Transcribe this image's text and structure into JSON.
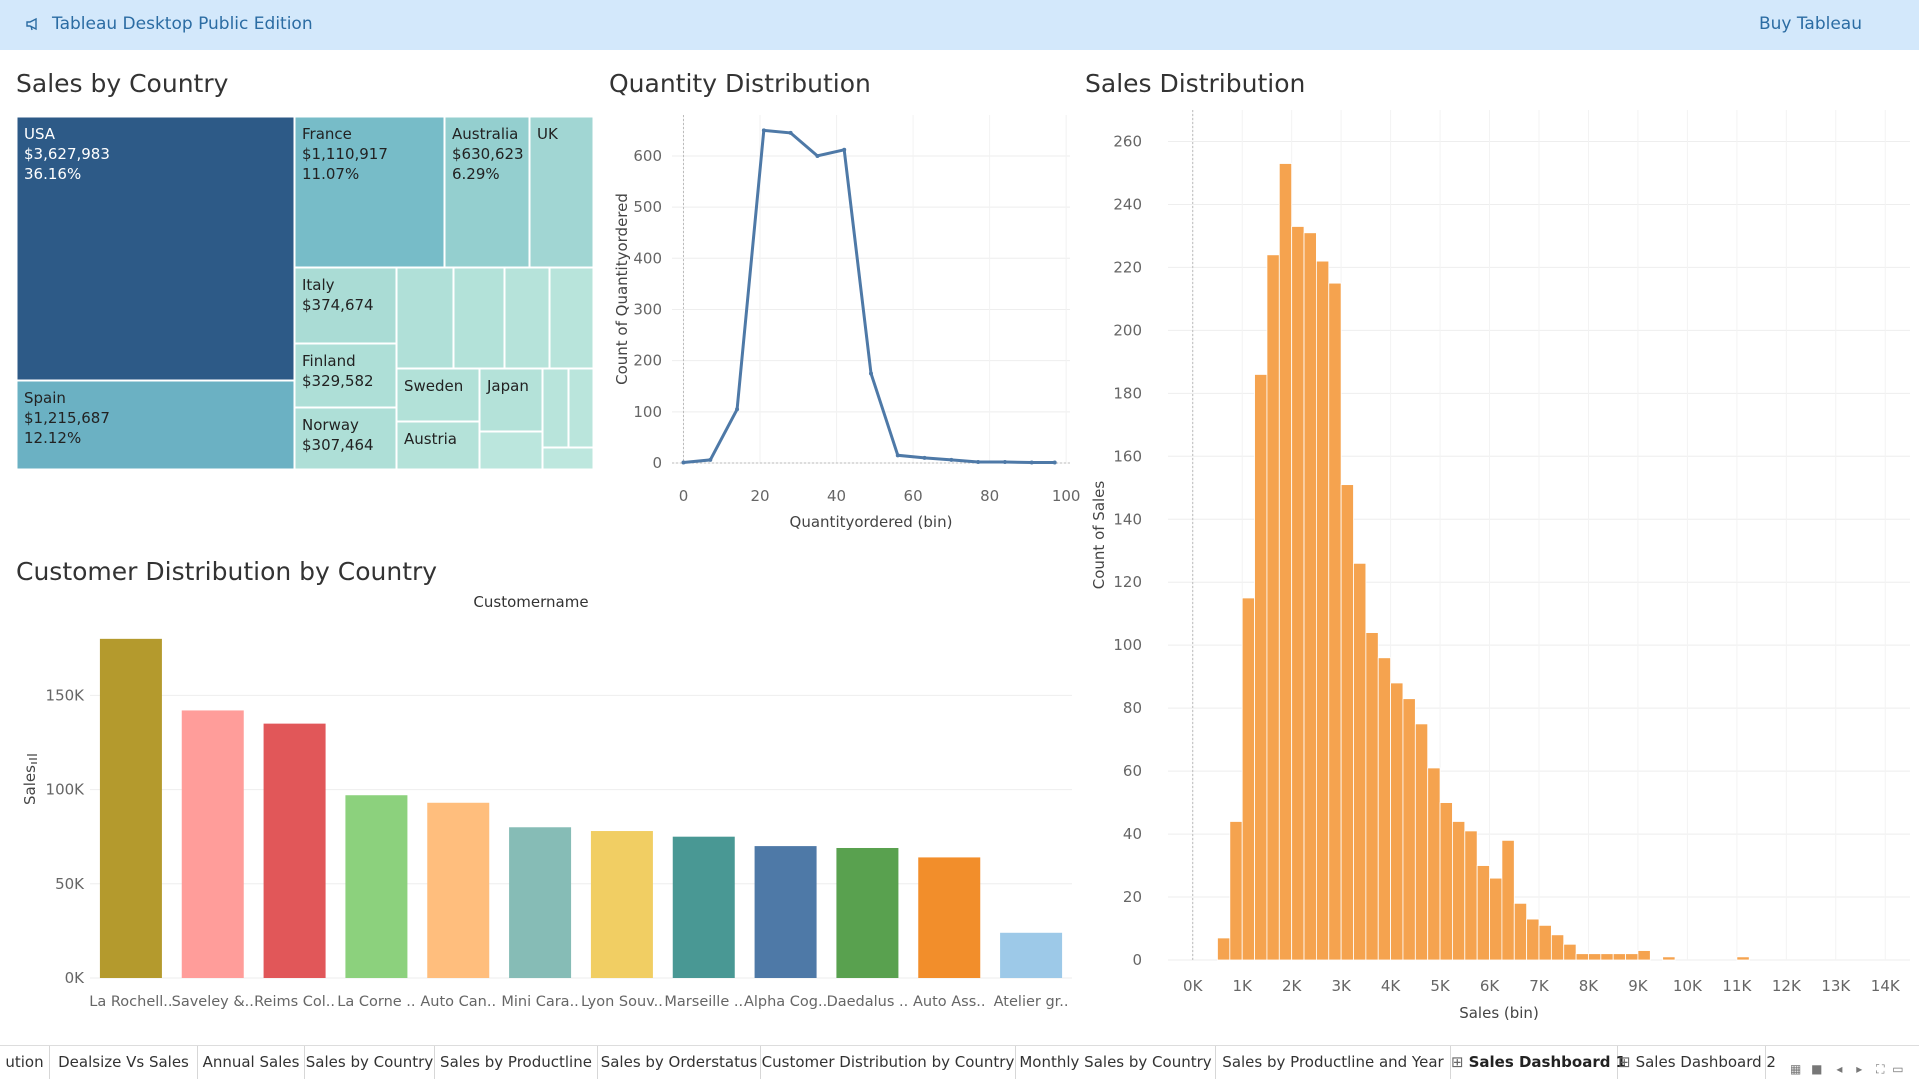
{
  "app": {
    "title": "Tableau Desktop Public Edition",
    "buy_label": "Buy Tableau"
  },
  "sections": {
    "treemap_title": "Sales by Country",
    "qty_title": "Quantity Distribution",
    "sales_dist_title": "Sales Distribution",
    "customer_title": "Customer Distribution by Country"
  },
  "treemap": {
    "cells": [
      {
        "country": "USA",
        "sales": "$3,627,983",
        "pct": "36.16%",
        "color": "#2d5a87"
      },
      {
        "country": "Spain",
        "sales": "$1,215,687",
        "pct": "12.12%",
        "color": "#6bb1c3"
      },
      {
        "country": "France",
        "sales": "$1,110,917",
        "pct": "11.07%",
        "color": "#77bcc8"
      },
      {
        "country": "Australia",
        "sales": "$630,623",
        "pct": "6.29%",
        "color": "#94cfcf"
      },
      {
        "country": "UK",
        "sales": "",
        "pct": "",
        "color": "#a1d6d3"
      },
      {
        "country": "Italy",
        "sales": "$374,674",
        "pct": "",
        "color": "#aadcd5"
      },
      {
        "country": "Finland",
        "sales": "$329,582",
        "pct": "",
        "color": "#aedfd7"
      },
      {
        "country": "Norway",
        "sales": "$307,464",
        "pct": "",
        "color": "#aedfd7"
      },
      {
        "country": "Sweden",
        "sales": "",
        "pct": "",
        "color": "#b2e1d8"
      },
      {
        "country": "Japan",
        "sales": "",
        "pct": "",
        "color": "#b4e2d9"
      },
      {
        "country": "Austria",
        "sales": "",
        "pct": "",
        "color": "#b4e2d9"
      }
    ]
  },
  "chart_data": [
    {
      "type": "line",
      "title": "Quantity Distribution",
      "xlabel": "Quantityordered (bin)",
      "ylabel": "Count of Quantityordered",
      "x": [
        0,
        7,
        14,
        21,
        28,
        35,
        42,
        49,
        56,
        63,
        70,
        77,
        84,
        91,
        97
      ],
      "y": [
        1,
        6,
        105,
        650,
        645,
        600,
        612,
        175,
        15,
        10,
        6,
        2,
        2,
        1,
        1
      ],
      "xticks": [
        "0",
        "20",
        "40",
        "60",
        "80",
        "100"
      ],
      "yticks": [
        "0",
        "100",
        "200",
        "300",
        "400",
        "500",
        "600"
      ],
      "xlim": [
        -3,
        101
      ],
      "ylim": [
        0,
        680
      ],
      "color": "#4e79a7"
    },
    {
      "type": "bar",
      "title": "Sales Distribution",
      "xlabel": "Sales (bin)",
      "ylabel": "Count of Sales",
      "x": [
        500,
        750,
        1000,
        1250,
        1500,
        1750,
        2000,
        2250,
        2500,
        2750,
        3000,
        3250,
        3500,
        3750,
        4000,
        4250,
        4500,
        4750,
        5000,
        5250,
        5500,
        5750,
        6000,
        6250,
        6500,
        6750,
        7000,
        7250,
        7500,
        7750,
        8000,
        8250,
        8500,
        8750,
        9000,
        9250,
        9500,
        9750,
        10000,
        10250,
        10500,
        10750,
        11000,
        11250,
        11500,
        11750,
        12000,
        12250,
        12500,
        12750,
        13000,
        13250,
        13500,
        13750,
        14000
      ],
      "values": [
        7,
        44,
        115,
        186,
        224,
        253,
        233,
        231,
        222,
        215,
        151,
        126,
        104,
        96,
        88,
        83,
        75,
        61,
        50,
        44,
        41,
        30,
        26,
        38,
        18,
        13,
        11,
        8,
        5,
        2,
        2,
        2,
        2,
        2,
        3,
        0,
        1,
        0,
        0,
        0,
        0,
        0,
        1,
        0,
        0,
        0,
        0,
        0,
        0,
        0,
        0,
        0,
        0,
        0,
        0
      ],
      "xticks": [
        "0K",
        "1K",
        "2K",
        "3K",
        "4K",
        "5K",
        "6K",
        "7K",
        "8K",
        "9K",
        "10K",
        "11K",
        "12K",
        "13K",
        "14K"
      ],
      "yticks": [
        "0",
        "20",
        "40",
        "60",
        "80",
        "100",
        "120",
        "140",
        "160",
        "180",
        "200",
        "220",
        "240",
        "260"
      ],
      "ylim": [
        0,
        270
      ],
      "color": "#f5a34f"
    },
    {
      "type": "bar",
      "title": "Customer Distribution by Country",
      "header": "Customername",
      "ylabel": "Sales",
      "categories": [
        "La Rochell..",
        "Saveley &..",
        "Reims Col..",
        "La Corne ..",
        "Auto Can..",
        "Mini Cara..",
        "Lyon Souv..",
        "Marseille ..",
        "Alpha Cog..",
        "Daedalus ..",
        "Auto Ass..",
        "Atelier gr.."
      ],
      "values": [
        180000,
        142000,
        135000,
        97000,
        93000,
        80000,
        78000,
        75000,
        70000,
        69000,
        64000,
        24000
      ],
      "colors": [
        "#b49a2d",
        "#ff9d9a",
        "#e15759",
        "#8cd17d",
        "#ffbe7d",
        "#86bcb6",
        "#f1ce63",
        "#499894",
        "#4e79a7",
        "#59a14f",
        "#f28e2b",
        "#9dc9e8"
      ],
      "yticks": [
        "0K",
        "50K",
        "100K",
        "150K"
      ],
      "ylim": [
        0,
        190000
      ]
    }
  ],
  "tabs": [
    {
      "label": "ution",
      "active": false,
      "icon": ""
    },
    {
      "label": "Dealsize Vs Sales",
      "active": false,
      "icon": ""
    },
    {
      "label": "Annual Sales",
      "active": false,
      "icon": ""
    },
    {
      "label": "Sales by Country",
      "active": false,
      "icon": ""
    },
    {
      "label": "Sales by Productline",
      "active": false,
      "icon": ""
    },
    {
      "label": "Sales by Orderstatus",
      "active": false,
      "icon": ""
    },
    {
      "label": "Customer Distribution by Country",
      "active": false,
      "icon": ""
    },
    {
      "label": "Monthly Sales by Country",
      "active": false,
      "icon": ""
    },
    {
      "label": "Sales by Productline and Year",
      "active": false,
      "icon": ""
    },
    {
      "label": "Sales Dashboard 1",
      "active": true,
      "icon": "⊞"
    },
    {
      "label": "Sales Dashboard 2",
      "active": false,
      "icon": "⊞"
    }
  ]
}
